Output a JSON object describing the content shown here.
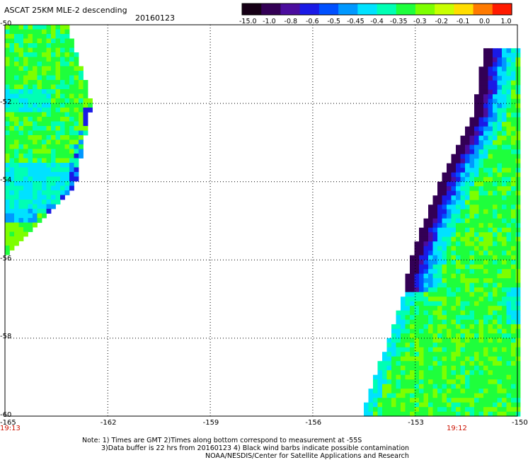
{
  "header": {
    "title": "ASCAT 25KM MLE-2 descending",
    "date": "20160123"
  },
  "colorbar": {
    "labels": [
      "-15.0",
      "-1.0",
      "-0.8",
      "-0.6",
      "-0.5",
      "-0.45",
      "-0.4",
      "-0.35",
      "-0.3",
      "-0.2",
      "-0.1",
      "0.0",
      "1.0"
    ],
    "colors": [
      "#160016",
      "#330055",
      "#4b0d9e",
      "#1a1ae6",
      "#0050ff",
      "#0098ff",
      "#00e2ff",
      "#00ffb4",
      "#1eff3c",
      "#7dff00",
      "#c8ff00",
      "#ffdd00",
      "#ff7a00",
      "#ff1a00"
    ]
  },
  "axes": {
    "lat_labels": [
      "-50",
      "-52",
      "-54",
      "-56",
      "-58",
      "-60"
    ],
    "lon_labels": [
      "-165",
      "-162",
      "-159",
      "-156",
      "-153",
      "-150"
    ],
    "lat_range": [
      -60,
      -50
    ],
    "lon_range": [
      -165,
      -150
    ],
    "grid": "dotted"
  },
  "times": {
    "left": "19:13",
    "right": "19:12"
  },
  "notes": [
    "Note: 1) Times are GMT 2)Times along bottom correspond to measurement at -55S",
    "3)Data buffer is 22 hrs from 20160123 4) Black wind barbs indicate possible contamination",
    "NOAA/NESDIS/Center for Satellite Applications and Research"
  ],
  "swaths": {
    "west": {
      "edge_points_lon_lat": [
        [
          -163.2,
          -50.0
        ],
        [
          -162.5,
          -52.0
        ],
        [
          -163.0,
          -54.2
        ],
        [
          -165.0,
          -55.9
        ]
      ],
      "typical_value": "-0.3",
      "low_band_value": "-0.4"
    },
    "east": {
      "edge_points_lon_lat": [
        [
          -150.9,
          -50.6
        ],
        [
          -151.2,
          -52.2
        ],
        [
          -152.2,
          -54.0
        ],
        [
          -153.0,
          -55.8
        ],
        [
          -153.3,
          -57.0
        ],
        [
          -154.5,
          -60.0
        ]
      ],
      "band_value": "-1.0",
      "typical_value": "-0.3"
    }
  }
}
